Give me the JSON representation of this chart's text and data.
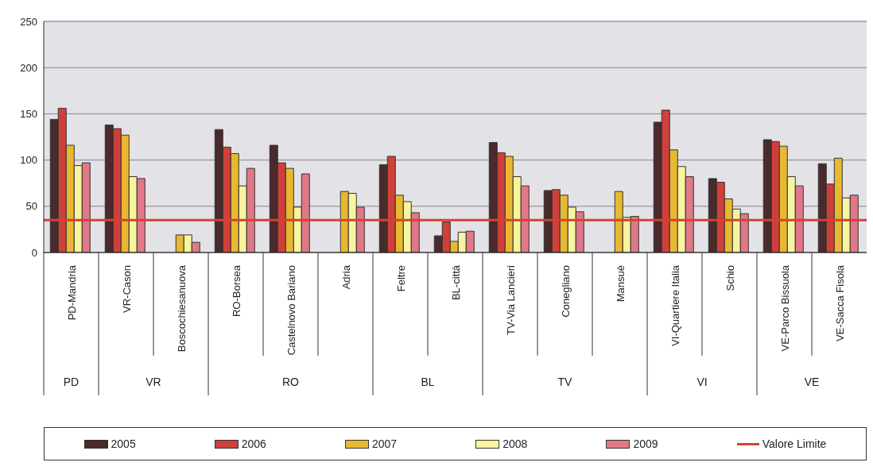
{
  "chart_data": {
    "type": "bar",
    "categories": [
      "PD-Mandria",
      "VR-Cason",
      "Boscochiesanuova",
      "RO-Borsea",
      "Castelnovo Bariano",
      "Adria",
      "Feltre",
      "BL-città",
      "TV-Via Lancieri",
      "Conegliano",
      "Mansuè",
      "VI-Quartiere Italia",
      "Schio",
      "VE-Parco Bissuola",
      "VE-Sacca Fisola"
    ],
    "series": [
      {
        "name": "2005",
        "color": "#4a2a2a",
        "values": [
          144,
          138,
          null,
          133,
          116,
          null,
          95,
          18,
          119,
          67,
          null,
          141,
          80,
          122,
          96
        ]
      },
      {
        "name": "2006",
        "color": "#d0403a",
        "values": [
          156,
          134,
          null,
          114,
          97,
          null,
          104,
          33,
          108,
          68,
          null,
          154,
          76,
          120,
          74
        ]
      },
      {
        "name": "2007",
        "color": "#e8b830",
        "values": [
          116,
          127,
          19,
          107,
          91,
          66,
          62,
          12,
          104,
          62,
          66,
          111,
          58,
          115,
          102
        ]
      },
      {
        "name": "2008",
        "color": "#f8f4a0",
        "values": [
          94,
          82,
          19,
          72,
          49,
          64,
          55,
          22,
          82,
          49,
          38,
          93,
          47,
          82,
          59
        ]
      },
      {
        "name": "2009",
        "color": "#e07888",
        "values": [
          97,
          80,
          11,
          91,
          85,
          49,
          43,
          23,
          72,
          44,
          39,
          82,
          42,
          72,
          62
        ]
      }
    ],
    "ylim": [
      0,
      250
    ],
    "yticks": [
      0,
      50,
      100,
      150,
      200,
      250
    ],
    "grid": "y",
    "legend": "bottom",
    "ref_lines": [
      {
        "axis": "y",
        "value": 35,
        "label": "Valore Limite",
        "color": "#d84030"
      }
    ],
    "annotations": [
      "PD",
      "VR",
      "RO",
      "BL",
      "TV",
      "VI",
      "VE"
    ]
  }
}
